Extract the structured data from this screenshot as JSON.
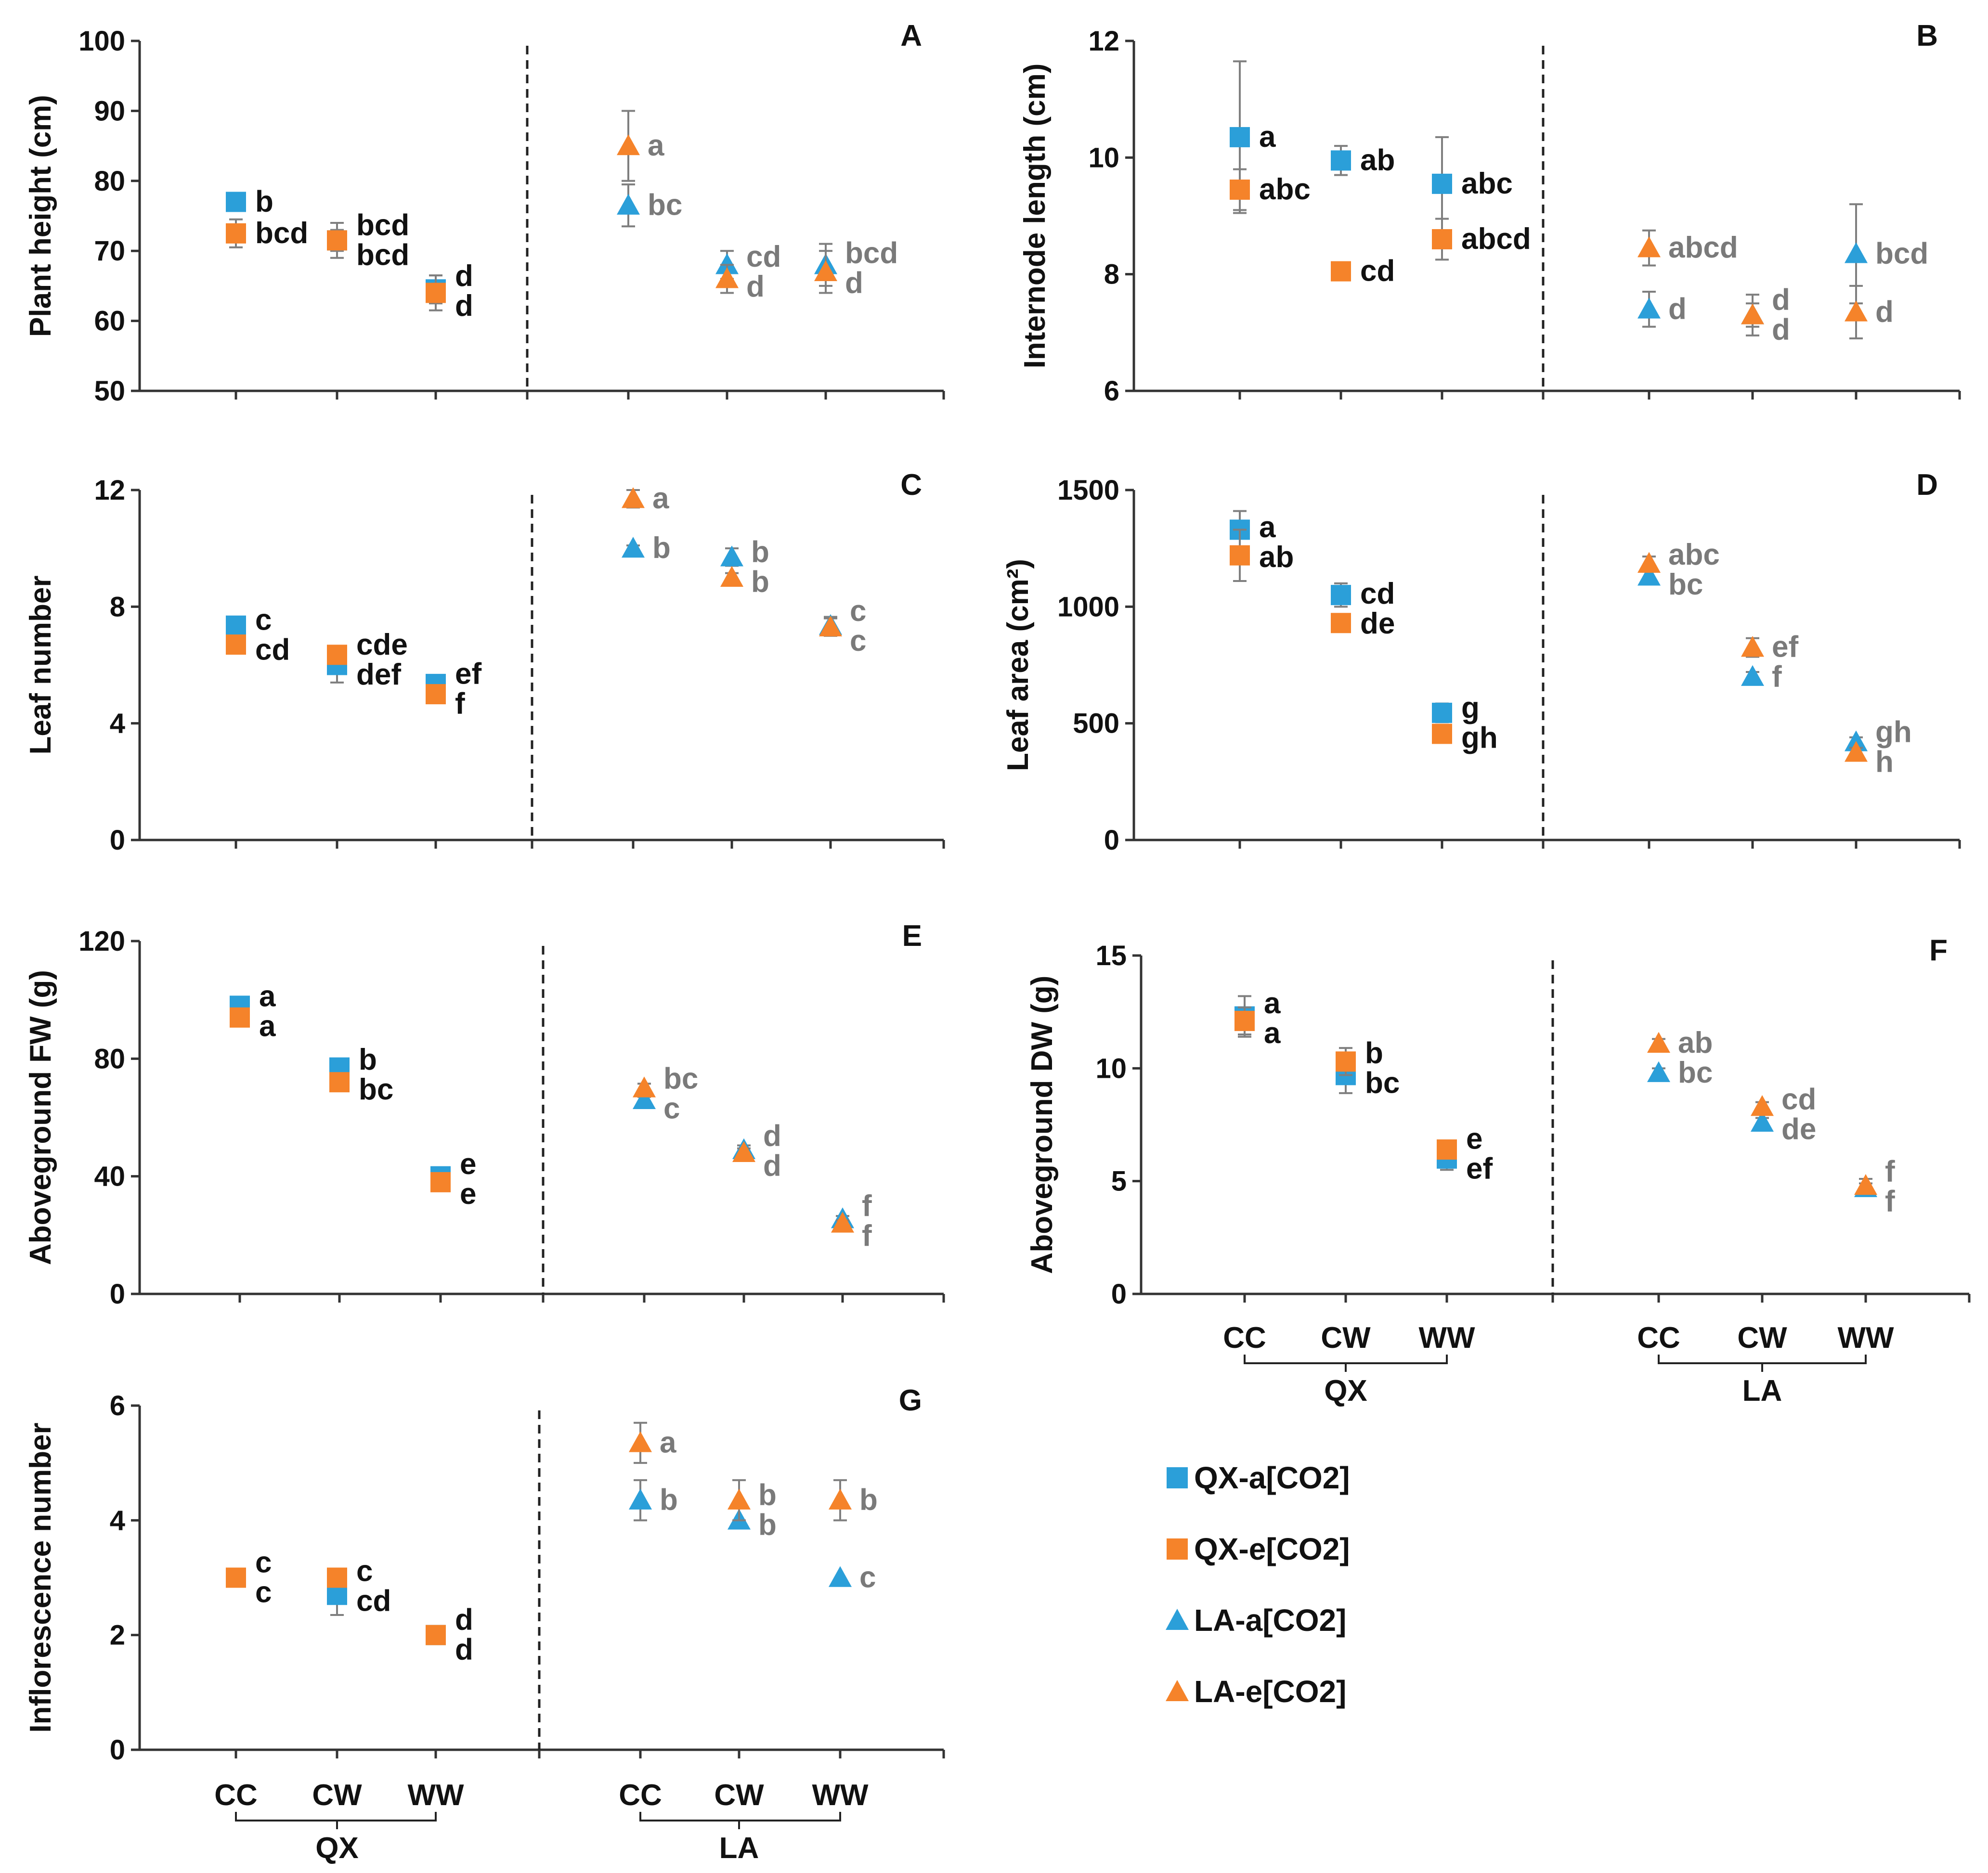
{
  "colors": {
    "qx_a": "#2b9fd9",
    "qx_e": "#f5832a",
    "la_a": "#2b9fd9",
    "la_e": "#f5832a",
    "axis": "#333333",
    "error_bar": "#7f7f7f",
    "qx_letters": "#111111",
    "la_letters": "#7a7a7a"
  },
  "legend": [
    {
      "key": "qx_a",
      "label": "QX-a[CO2]",
      "marker": "square-marker"
    },
    {
      "key": "qx_e",
      "label": "QX-e[CO2]",
      "marker": "square-marker"
    },
    {
      "key": "la_a",
      "label": "LA-a[CO2]",
      "marker": "triangle-marker"
    },
    {
      "key": "la_e",
      "label": "LA-e[CO2]",
      "marker": "triangle-marker"
    }
  ],
  "x_axis": {
    "treatments": [
      "CC",
      "CW",
      "WW"
    ],
    "groups": [
      "QX",
      "LA"
    ]
  },
  "chart_data": [
    {
      "type": "scatter",
      "panel": "A",
      "ylabel": "Plant height (cm)",
      "ylim": [
        50,
        100
      ],
      "yticks": [
        50,
        60,
        70,
        80,
        90,
        100
      ],
      "categories": [
        "QX-CC",
        "QX-CW",
        "QX-WW",
        "LA-CC",
        "LA-CW",
        "LA-WW"
      ],
      "series": [
        {
          "name": "QX-a[CO2]",
          "key": "qx_a",
          "values": [
            77,
            71.5,
            64.5,
            null,
            null,
            null
          ],
          "errors": [
            1.0,
            1.5,
            2.0,
            null,
            null,
            null
          ],
          "letters": [
            "b",
            "bcd",
            "d",
            null,
            null,
            null
          ]
        },
        {
          "name": "QX-e[CO2]",
          "key": "qx_e",
          "values": [
            72.5,
            71.5,
            64,
            null,
            null,
            null
          ],
          "errors": [
            2.0,
            2.5,
            2.5,
            null,
            null,
            null
          ],
          "letters": [
            "bcd",
            "bcd",
            "d",
            null,
            null,
            null
          ]
        },
        {
          "name": "LA-a[CO2]",
          "key": "la_a",
          "values": [
            null,
            null,
            null,
            76.5,
            68,
            68
          ],
          "errors": [
            null,
            null,
            null,
            3.0,
            2.0,
            3.0
          ],
          "letters": [
            null,
            null,
            null,
            "bc",
            "cd",
            "bcd"
          ]
        },
        {
          "name": "LA-e[CO2]",
          "key": "la_e",
          "values": [
            null,
            null,
            null,
            85,
            66,
            67
          ],
          "errors": [
            null,
            null,
            null,
            5.0,
            2.0,
            3.0
          ],
          "letters": [
            null,
            null,
            null,
            "a",
            "d",
            "d"
          ]
        }
      ]
    },
    {
      "type": "scatter",
      "panel": "B",
      "ylabel": "Internode length (cm)",
      "ylim": [
        6,
        12
      ],
      "yticks": [
        6,
        8,
        10,
        12
      ],
      "categories": [
        "QX-CC",
        "QX-CW",
        "QX-WW",
        "LA-CC",
        "LA-CW",
        "LA-WW"
      ],
      "series": [
        {
          "name": "QX-a[CO2]",
          "key": "qx_a",
          "values": [
            10.35,
            9.95,
            9.55,
            null,
            null,
            null
          ],
          "errors": [
            1.3,
            0.25,
            0.8,
            null,
            null,
            null
          ],
          "letters": [
            "a",
            "ab",
            "abc",
            null,
            null,
            null
          ]
        },
        {
          "name": "QX-e[CO2]",
          "key": "qx_e",
          "values": [
            9.45,
            8.05,
            8.6,
            null,
            null,
            null
          ],
          "errors": [
            0.35,
            0.05,
            0.35,
            null,
            null,
            null
          ],
          "letters": [
            "abc",
            "cd",
            "abcd",
            null,
            null,
            null
          ]
        },
        {
          "name": "LA-a[CO2]",
          "key": "la_a",
          "values": [
            null,
            null,
            null,
            7.4,
            7.3,
            8.35
          ],
          "errors": [
            null,
            null,
            null,
            0.3,
            0.2,
            0.85
          ],
          "letters": [
            null,
            null,
            null,
            "d",
            "d",
            "bcd"
          ]
        },
        {
          "name": "LA-e[CO2]",
          "key": "la_e",
          "values": [
            null,
            null,
            null,
            8.45,
            7.3,
            7.35
          ],
          "errors": [
            null,
            null,
            null,
            0.3,
            0.35,
            0.45
          ],
          "letters": [
            null,
            null,
            null,
            "abcd",
            "d",
            "d"
          ]
        }
      ]
    },
    {
      "type": "scatter",
      "panel": "C",
      "ylabel": "Leaf number",
      "ylim": [
        0,
        12
      ],
      "yticks": [
        0,
        4,
        8,
        12
      ],
      "categories": [
        "QX-CC",
        "QX-CW",
        "QX-WW",
        "LA-CC",
        "LA-CW",
        "LA-WW"
      ],
      "series": [
        {
          "name": "QX-a[CO2]",
          "key": "qx_a",
          "values": [
            7.35,
            6.0,
            5.35,
            null,
            null,
            null
          ],
          "errors": [
            0.3,
            0.6,
            0.25,
            null,
            null,
            null
          ],
          "letters": [
            "c",
            "def",
            "ef",
            null,
            null,
            null
          ]
        },
        {
          "name": "QX-e[CO2]",
          "key": "qx_e",
          "values": [
            6.7,
            6.35,
            5.0,
            null,
            null,
            null
          ],
          "errors": [
            0.15,
            0.2,
            0.15,
            null,
            null,
            null
          ],
          "letters": [
            "cd",
            "cde",
            "f",
            null,
            null,
            null
          ]
        },
        {
          "name": "LA-a[CO2]",
          "key": "la_a",
          "values": [
            null,
            null,
            null,
            10.0,
            9.7,
            7.35
          ],
          "errors": [
            null,
            null,
            null,
            0.1,
            0.3,
            0.3
          ],
          "letters": [
            null,
            null,
            null,
            "b",
            "b",
            "c"
          ]
        },
        {
          "name": "LA-e[CO2]",
          "key": "la_e",
          "values": [
            null,
            null,
            null,
            11.7,
            9.0,
            7.3
          ],
          "errors": [
            null,
            null,
            null,
            0.3,
            0.15,
            0.3
          ],
          "letters": [
            null,
            null,
            null,
            "a",
            "b",
            "c"
          ]
        }
      ]
    },
    {
      "type": "scatter",
      "panel": "D",
      "ylabel": "Leaf area (cm²)",
      "ylim": [
        0,
        1500
      ],
      "yticks": [
        0,
        500,
        1000,
        1500
      ],
      "categories": [
        "QX-CC",
        "QX-CW",
        "QX-WW",
        "LA-CC",
        "LA-CW",
        "LA-WW"
      ],
      "series": [
        {
          "name": "QX-a[CO2]",
          "key": "qx_a",
          "values": [
            1330,
            1050,
            545,
            null,
            null,
            null
          ],
          "errors": [
            80,
            50,
            40,
            null,
            null,
            null
          ],
          "letters": [
            "a",
            "cd",
            "g",
            null,
            null,
            null
          ]
        },
        {
          "name": "QX-e[CO2]",
          "key": "qx_e",
          "values": [
            1220,
            930,
            455,
            null,
            null,
            null
          ],
          "errors": [
            110,
            25,
            20,
            null,
            null,
            null
          ],
          "letters": [
            "ab",
            "de",
            "gh",
            null,
            null,
            null
          ]
        },
        {
          "name": "LA-a[CO2]",
          "key": "la_a",
          "values": [
            null,
            null,
            null,
            1130,
            700,
            420
          ],
          "errors": [
            null,
            null,
            null,
            20,
            20,
            20
          ],
          "letters": [
            null,
            null,
            null,
            "bc",
            "f",
            "gh"
          ]
        },
        {
          "name": "LA-e[CO2]",
          "key": "la_e",
          "values": [
            null,
            null,
            null,
            1185,
            825,
            375
          ],
          "errors": [
            null,
            null,
            null,
            30,
            40,
            20
          ],
          "letters": [
            null,
            null,
            null,
            "abc",
            "ef",
            "h"
          ]
        }
      ]
    },
    {
      "type": "scatter",
      "panel": "E",
      "ylabel": "Aboveground FW (g)",
      "ylim": [
        0,
        120
      ],
      "yticks": [
        0,
        40,
        80,
        120
      ],
      "categories": [
        "QX-CC",
        "QX-CW",
        "QX-WW",
        "LA-CC",
        "LA-CW",
        "LA-WW"
      ],
      "series": [
        {
          "name": "QX-a[CO2]",
          "key": "qx_a",
          "values": [
            98,
            77,
            40,
            null,
            null,
            null
          ],
          "errors": [
            2,
            3,
            1,
            null,
            null,
            null
          ],
          "letters": [
            "a",
            "b",
            "e",
            null,
            null,
            null
          ]
        },
        {
          "name": "QX-e[CO2]",
          "key": "qx_e",
          "values": [
            94,
            72,
            38,
            null,
            null,
            null
          ],
          "errors": [
            3,
            2,
            2,
            null,
            null,
            null
          ],
          "letters": [
            "a",
            "bc",
            "e",
            null,
            null,
            null
          ]
        },
        {
          "name": "LA-a[CO2]",
          "key": "la_a",
          "values": [
            null,
            null,
            null,
            66,
            49,
            25.5
          ],
          "errors": [
            null,
            null,
            null,
            1,
            1.5,
            1
          ],
          "letters": [
            null,
            null,
            null,
            "c",
            "d",
            "f"
          ]
        },
        {
          "name": "LA-e[CO2]",
          "key": "la_e",
          "values": [
            null,
            null,
            null,
            70,
            48,
            24
          ],
          "errors": [
            null,
            null,
            null,
            1.5,
            1.5,
            1
          ],
          "letters": [
            null,
            null,
            null,
            "bc",
            "d",
            "f"
          ]
        }
      ]
    },
    {
      "type": "scatter",
      "panel": "F",
      "ylabel": "Aboveground DW (g)",
      "ylim": [
        0,
        15
      ],
      "yticks": [
        0,
        5,
        10,
        15
      ],
      "categories": [
        "QX-CC",
        "QX-CW",
        "QX-WW",
        "LA-CC",
        "LA-CW",
        "LA-WW"
      ],
      "series": [
        {
          "name": "QX-a[CO2]",
          "key": "qx_a",
          "values": [
            12.3,
            9.7,
            6.0,
            null,
            null,
            null
          ],
          "errors": [
            0.9,
            0.8,
            0.5,
            null,
            null,
            null
          ],
          "letters": [
            "a",
            "bc",
            "ef",
            null,
            null,
            null
          ]
        },
        {
          "name": "QX-e[CO2]",
          "key": "qx_e",
          "values": [
            12.1,
            10.3,
            6.4,
            null,
            null,
            null
          ],
          "errors": [
            0.6,
            0.6,
            0.3,
            null,
            null,
            null
          ],
          "letters": [
            "a",
            "b",
            "e",
            null,
            null,
            null
          ]
        },
        {
          "name": "LA-a[CO2]",
          "key": "la_a",
          "values": [
            null,
            null,
            null,
            9.8,
            7.6,
            4.7
          ],
          "errors": [
            null,
            null,
            null,
            0.2,
            0.2,
            0.2
          ],
          "letters": [
            null,
            null,
            null,
            "bc",
            "de",
            "f"
          ]
        },
        {
          "name": "LA-e[CO2]",
          "key": "la_e",
          "values": [
            null,
            null,
            null,
            11.1,
            8.3,
            4.8
          ],
          "errors": [
            null,
            null,
            null,
            0.2,
            0.2,
            0.3
          ],
          "letters": [
            null,
            null,
            null,
            "ab",
            "cd",
            "f"
          ]
        }
      ]
    },
    {
      "type": "scatter",
      "panel": "G",
      "ylabel": "Inflorescence number",
      "ylim": [
        0,
        6
      ],
      "yticks": [
        0,
        2,
        4,
        6
      ],
      "categories": [
        "QX-CC",
        "QX-CW",
        "QX-WW",
        "LA-CC",
        "LA-CW",
        "LA-WW"
      ],
      "series": [
        {
          "name": "QX-a[CO2]",
          "key": "qx_a",
          "values": [
            3.0,
            2.7,
            2.0,
            null,
            null,
            null
          ],
          "errors": [
            0,
            0.35,
            0,
            null,
            null,
            null
          ],
          "letters": [
            "c",
            "cd",
            "d",
            null,
            null,
            null
          ]
        },
        {
          "name": "QX-e[CO2]",
          "key": "qx_e",
          "values": [
            3.0,
            3.0,
            2.0,
            null,
            null,
            null
          ],
          "errors": [
            0,
            0,
            0,
            null,
            null,
            null
          ],
          "letters": [
            "c",
            "c",
            "d",
            null,
            null,
            null
          ]
        },
        {
          "name": "LA-a[CO2]",
          "key": "la_a",
          "values": [
            null,
            null,
            null,
            4.35,
            4.0,
            3.0
          ],
          "errors": [
            null,
            null,
            null,
            0.35,
            0,
            0
          ],
          "letters": [
            null,
            null,
            null,
            "b",
            "b",
            "c"
          ]
        },
        {
          "name": "LA-e[CO2]",
          "key": "la_e",
          "values": [
            null,
            null,
            null,
            5.35,
            4.35,
            4.35
          ],
          "errors": [
            null,
            null,
            null,
            0.35,
            0.35,
            0.35
          ],
          "letters": [
            null,
            null,
            null,
            "a",
            "b",
            "b"
          ]
        }
      ]
    }
  ]
}
